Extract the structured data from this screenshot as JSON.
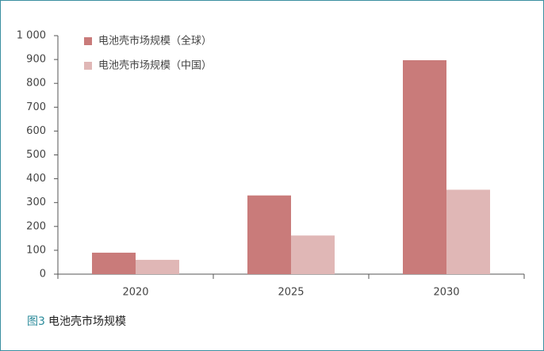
{
  "chart_data": {
    "type": "bar",
    "figure_label": "图3",
    "title": "电池壳市场规模",
    "categories": [
      "2020",
      "2025",
      "2030"
    ],
    "series": [
      {
        "name": "电池壳市场规模（全球）",
        "color": "#c97b7a",
        "values": [
          90,
          330,
          897
        ]
      },
      {
        "name": "电池壳市场规模（中国）",
        "color": "#e0b7b6",
        "values": [
          60,
          162,
          354
        ]
      }
    ],
    "ylim": [
      0,
      1000
    ],
    "yticks": [
      0,
      100,
      200,
      300,
      400,
      500,
      600,
      700,
      800,
      900,
      {
        "value": 1000,
        "label": "1 000"
      }
    ],
    "grid": false,
    "legend": "top-left"
  }
}
